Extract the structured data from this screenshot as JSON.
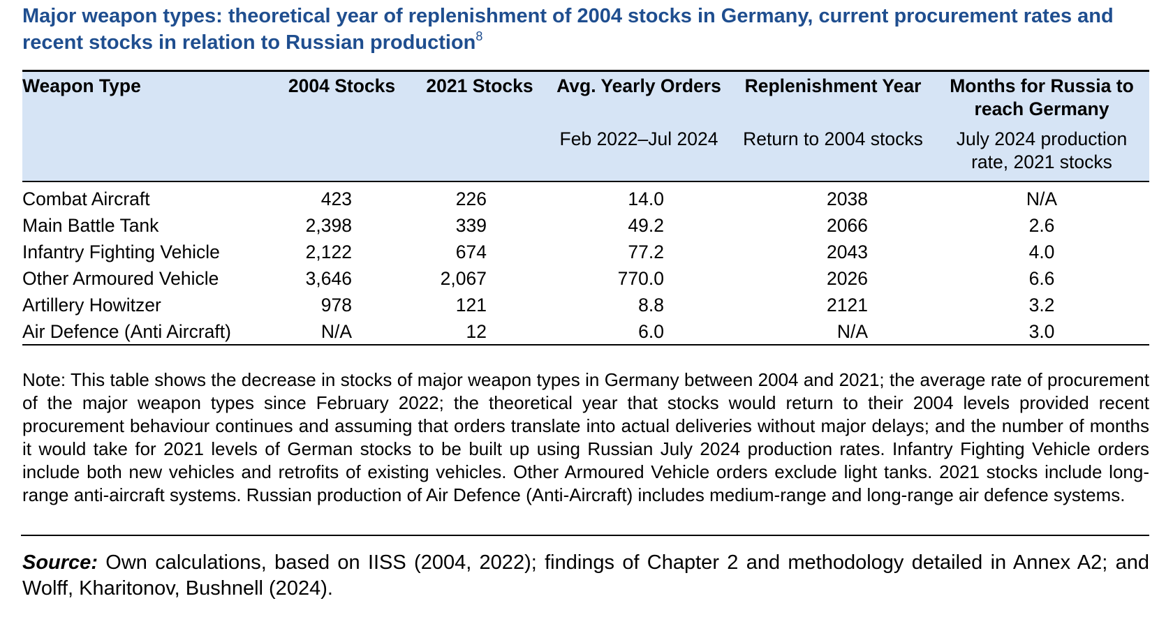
{
  "title": "Major weapon types: theoretical year of replenishment of 2004 stocks in Germany, current procurement rates and recent stocks in relation to Russian production",
  "title_superscript": "8",
  "table": {
    "header": [
      "Weapon Type",
      "2004 Stocks",
      "2021 Stocks",
      "Avg. Yearly Orders",
      "Replenishment Year",
      "Months for Russia to reach Germany"
    ],
    "subheader": [
      null,
      null,
      null,
      "Feb 2022–Jul 2024",
      "Return to 2004 stocks",
      "July 2024 production rate, 2021 stocks"
    ],
    "rows": [
      [
        "Combat Aircraft",
        "423",
        "226",
        "14.0",
        "2038",
        "N/A"
      ],
      [
        "Main Battle Tank",
        "2,398",
        "339",
        "49.2",
        "2066",
        "2.6"
      ],
      [
        "Infantry Fighting Vehicle",
        "2,122",
        "674",
        "77.2",
        "2043",
        "4.0"
      ],
      [
        "Other Armoured Vehicle",
        "3,646",
        "2,067",
        "770.0",
        "2026",
        "6.6"
      ],
      [
        "Artillery Howitzer",
        "978",
        "121",
        "8.8",
        "2121",
        "3.2"
      ],
      [
        "Air Defence (Anti Aircraft)",
        "N/A",
        "12",
        "6.0",
        "N/A",
        "3.0"
      ]
    ]
  },
  "note": "Note: This table shows the decrease in stocks of major weapon types in Germany between 2004 and 2021; the average rate of procurement of the major weapon types since February 2022; the theoretical year that stocks would return to their 2004 levels provided recent procurement behaviour continues and assuming that orders translate into actual deliveries without major delays; and the number of months it would take for 2021 levels of German stocks to be built up using Russian July 2024 production rates. Infantry Fighting Vehicle orders include both new vehicles and retrofits of existing vehicles. Other Armoured Vehicle orders exclude light tanks. 2021 stocks include long-range anti-aircraft systems. Russian production of Air Defence (Anti-Aircraft) includes medium-range and long-range air defence systems.",
  "source": {
    "label": "Source:",
    "text": "Own calculations, based on IISS (2004, 2022); findings of Chapter 2 and methodology detailed in Annex A2; and Wolff, Kharitonov, Bushnell (2024)."
  }
}
